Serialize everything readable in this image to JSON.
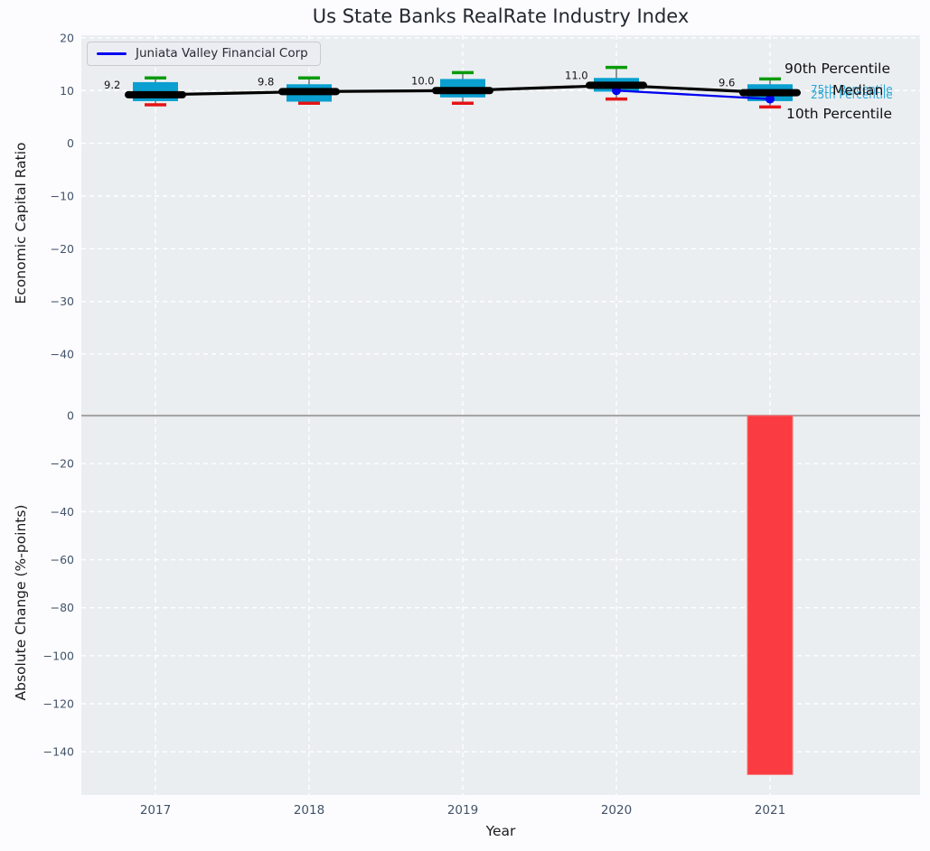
{
  "figure": {
    "colors": {
      "figure_bg": "#fcfcfe",
      "plot_bg": "#eaeef0",
      "grid": "#ffffff",
      "tick_label": "#42536a",
      "title": "#23272e"
    }
  },
  "chart_data": [
    {
      "type": "boxplot",
      "title": "Us State Banks RealRate Industry Index",
      "ylabel": "Economic Capital Ratio",
      "categories": [
        "2017",
        "2018",
        "2019",
        "2020",
        "2021"
      ],
      "ylim": [
        -50.8,
        20.5
      ],
      "yticks": {
        "values": [
          20,
          10,
          0,
          -10,
          -20,
          -30,
          -40
        ],
        "labels": [
          "20",
          "10",
          "0",
          "−10",
          "−20",
          "−30",
          "−40"
        ]
      },
      "grid": true,
      "legend_position": "upper-left",
      "boxes": {
        "p90": [
          12.4,
          12.4,
          13.4,
          14.4,
          12.2
        ],
        "p75": [
          11.6,
          11.2,
          12.2,
          12.4,
          11.2
        ],
        "median": [
          9.2,
          9.8,
          10.0,
          11.0,
          9.6
        ],
        "p25": [
          8.0,
          7.9,
          8.7,
          9.8,
          8.0
        ],
        "p10": [
          7.3,
          7.6,
          7.6,
          8.4,
          6.9
        ]
      },
      "median_labels": [
        "9.2",
        "9.8",
        "10.0",
        "11.0",
        "9.6"
      ],
      "series": [
        {
          "name": "Juniata Valley Financial Corp",
          "color": "#0000f0",
          "x": [
            "2020",
            "2021"
          ],
          "values": [
            10.0,
            8.4
          ],
          "marker": "circle"
        }
      ],
      "legend": {
        "entries": [
          {
            "label": "Juniata Valley Financial Corp",
            "color": "#0000f0"
          }
        ]
      },
      "annotations": {
        "p90": {
          "text": "90th Percentile",
          "color": "#111111"
        },
        "median": {
          "text": "Median",
          "color": "#111111"
        },
        "p75": {
          "text": "75th Percentile",
          "color": "#2aa5d8"
        },
        "p25": {
          "text": "25th Percentile",
          "color": "#2aa5d8"
        },
        "p10": {
          "text": "10th Percentile",
          "color": "#111111"
        }
      },
      "colors": {
        "box": "#0a9fd0",
        "p90_cap": "#0a9b0a",
        "p10_cap": "#e51414",
        "median": "#000000",
        "whisker": "#4a5560"
      }
    },
    {
      "type": "bar",
      "ylabel": "Absolute Change (%-points)",
      "xlabel": "Year",
      "categories": [
        "2017",
        "2018",
        "2019",
        "2020",
        "2021"
      ],
      "values": [
        null,
        null,
        null,
        null,
        -149.5
      ],
      "ylim": [
        -158,
        1.9
      ],
      "yticks": {
        "values": [
          0,
          -20,
          -40,
          -60,
          -80,
          -100,
          -120,
          -140
        ],
        "labels": [
          "0",
          "−20",
          "−40",
          "−60",
          "−80",
          "−100",
          "−120",
          "−140"
        ]
      },
      "bar_color": "#fa3b41",
      "bar_edge_color": "#fc7478",
      "zero_line_color": "#a6a6a6"
    }
  ]
}
